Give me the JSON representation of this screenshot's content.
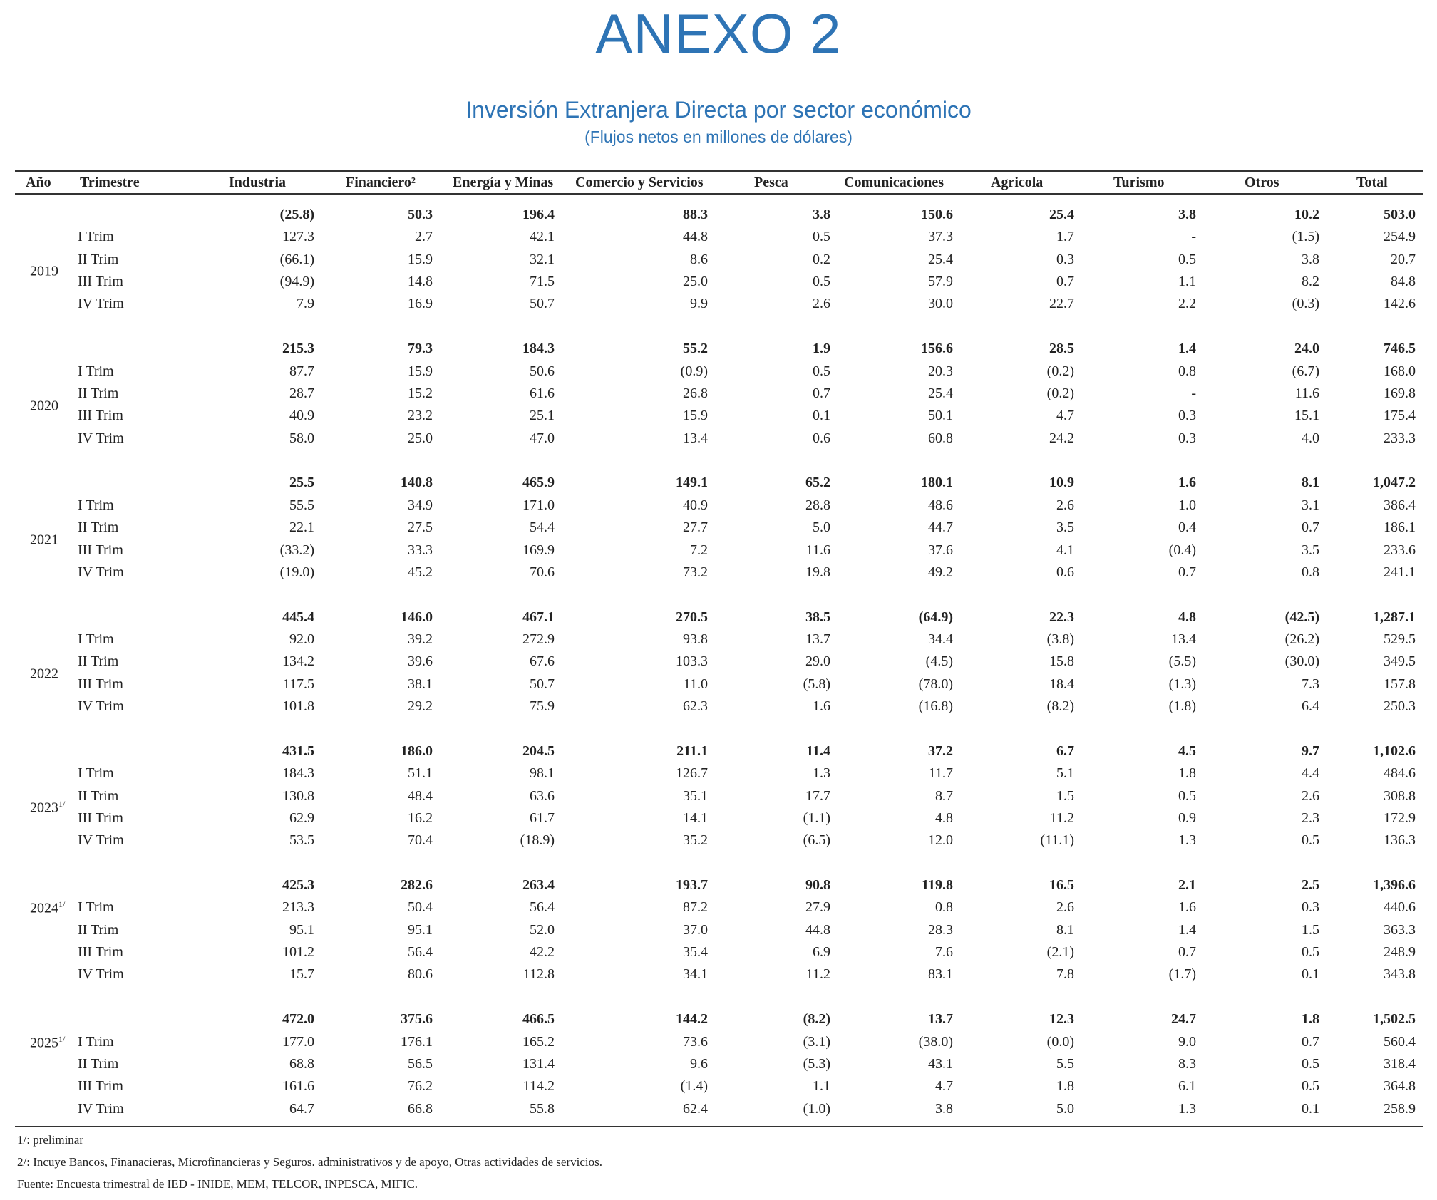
{
  "header": {
    "title": "ANEXO 2",
    "subtitle": "Inversión Extranjera Directa por sector económico",
    "units": "(Flujos netos en millones de dólares)",
    "title_color": "#2e74b5"
  },
  "table": {
    "columns": [
      "Año",
      "Trimestre",
      "Industria",
      "Financiero²",
      "Energía y Minas",
      "Comercio y Servicios",
      "Pesca",
      "Comunicaciones",
      "Agricola",
      "Turismo",
      "Otros",
      "Total"
    ],
    "blocks": [
      {
        "year": "2019",
        "note": "",
        "total": [
          "(25.8)",
          "50.3",
          "196.4",
          "88.3",
          "3.8",
          "150.6",
          "25.4",
          "3.8",
          "10.2",
          "503.0"
        ],
        "quarters": [
          {
            "label": "I Trim",
            "values": [
              "127.3",
              "2.7",
              "42.1",
              "44.8",
              "0.5",
              "37.3",
              "1.7",
              "-",
              "(1.5)",
              "254.9"
            ]
          },
          {
            "label": "II Trim",
            "values": [
              "(66.1)",
              "15.9",
              "32.1",
              "8.6",
              "0.2",
              "25.4",
              "0.3",
              "0.5",
              "3.8",
              "20.7"
            ]
          },
          {
            "label": "III Trim",
            "values": [
              "(94.9)",
              "14.8",
              "71.5",
              "25.0",
              "0.5",
              "57.9",
              "0.7",
              "1.1",
              "8.2",
              "84.8"
            ]
          },
          {
            "label": "IV Trim",
            "values": [
              "7.9",
              "16.9",
              "50.7",
              "9.9",
              "2.6",
              "30.0",
              "22.7",
              "2.2",
              "(0.3)",
              "142.6"
            ]
          }
        ]
      },
      {
        "year": "2020",
        "note": "",
        "total": [
          "215.3",
          "79.3",
          "184.3",
          "55.2",
          "1.9",
          "156.6",
          "28.5",
          "1.4",
          "24.0",
          "746.5"
        ],
        "quarters": [
          {
            "label": "I Trim",
            "values": [
              "87.7",
              "15.9",
              "50.6",
              "(0.9)",
              "0.5",
              "20.3",
              "(0.2)",
              "0.8",
              "(6.7)",
              "168.0"
            ]
          },
          {
            "label": "II Trim",
            "values": [
              "28.7",
              "15.2",
              "61.6",
              "26.8",
              "0.7",
              "25.4",
              "(0.2)",
              "-",
              "11.6",
              "169.8"
            ]
          },
          {
            "label": "III Trim",
            "values": [
              "40.9",
              "23.2",
              "25.1",
              "15.9",
              "0.1",
              "50.1",
              "4.7",
              "0.3",
              "15.1",
              "175.4"
            ]
          },
          {
            "label": "IV Trim",
            "values": [
              "58.0",
              "25.0",
              "47.0",
              "13.4",
              "0.6",
              "60.8",
              "24.2",
              "0.3",
              "4.0",
              "233.3"
            ]
          }
        ]
      },
      {
        "year": "2021",
        "note": "",
        "total": [
          "25.5",
          "140.8",
          "465.9",
          "149.1",
          "65.2",
          "180.1",
          "10.9",
          "1.6",
          "8.1",
          "1,047.2"
        ],
        "quarters": [
          {
            "label": "I Trim",
            "values": [
              "55.5",
              "34.9",
              "171.0",
              "40.9",
              "28.8",
              "48.6",
              "2.6",
              "1.0",
              "3.1",
              "386.4"
            ]
          },
          {
            "label": "II Trim",
            "values": [
              "22.1",
              "27.5",
              "54.4",
              "27.7",
              "5.0",
              "44.7",
              "3.5",
              "0.4",
              "0.7",
              "186.1"
            ]
          },
          {
            "label": "III Trim",
            "values": [
              "(33.2)",
              "33.3",
              "169.9",
              "7.2",
              "11.6",
              "37.6",
              "4.1",
              "(0.4)",
              "3.5",
              "233.6"
            ]
          },
          {
            "label": "IV Trim",
            "values": [
              "(19.0)",
              "45.2",
              "70.6",
              "73.2",
              "19.8",
              "49.2",
              "0.6",
              "0.7",
              "0.8",
              "241.1"
            ]
          }
        ]
      },
      {
        "year": "2022",
        "note": "",
        "total": [
          "445.4",
          "146.0",
          "467.1",
          "270.5",
          "38.5",
          "(64.9)",
          "22.3",
          "4.8",
          "(42.5)",
          "1,287.1"
        ],
        "quarters": [
          {
            "label": "I Trim",
            "values": [
              "92.0",
              "39.2",
              "272.9",
              "93.8",
              "13.7",
              "34.4",
              "(3.8)",
              "13.4",
              "(26.2)",
              "529.5"
            ]
          },
          {
            "label": "II Trim",
            "values": [
              "134.2",
              "39.6",
              "67.6",
              "103.3",
              "29.0",
              "(4.5)",
              "15.8",
              "(5.5)",
              "(30.0)",
              "349.5"
            ]
          },
          {
            "label": "III Trim",
            "values": [
              "117.5",
              "38.1",
              "50.7",
              "11.0",
              "(5.8)",
              "(78.0)",
              "18.4",
              "(1.3)",
              "7.3",
              "157.8"
            ]
          },
          {
            "label": "IV Trim",
            "values": [
              "101.8",
              "29.2",
              "75.9",
              "62.3",
              "1.6",
              "(16.8)",
              "(8.2)",
              "(1.8)",
              "6.4",
              "250.3"
            ]
          }
        ]
      },
      {
        "year": "2023",
        "note": "1/",
        "total": [
          "431.5",
          "186.0",
          "204.5",
          "211.1",
          "11.4",
          "37.2",
          "6.7",
          "4.5",
          "9.7",
          "1,102.6"
        ],
        "quarters": [
          {
            "label": "I Trim",
            "values": [
              "184.3",
              "51.1",
              "98.1",
              "126.7",
              "1.3",
              "11.7",
              "5.1",
              "1.8",
              "4.4",
              "484.6"
            ]
          },
          {
            "label": "II Trim",
            "values": [
              "130.8",
              "48.4",
              "63.6",
              "35.1",
              "17.7",
              "8.7",
              "1.5",
              "0.5",
              "2.6",
              "308.8"
            ]
          },
          {
            "label": "III Trim",
            "values": [
              "62.9",
              "16.2",
              "61.7",
              "14.1",
              "(1.1)",
              "4.8",
              "11.2",
              "0.9",
              "2.3",
              "172.9"
            ]
          },
          {
            "label": "IV Trim",
            "values": [
              "53.5",
              "70.4",
              "(18.9)",
              "35.2",
              "(6.5)",
              "12.0",
              "(11.1)",
              "1.3",
              "0.5",
              "136.3"
            ]
          }
        ]
      },
      {
        "year": "2024",
        "note": "1/",
        "total": [
          "425.3",
          "282.6",
          "263.4",
          "193.7",
          "90.8",
          "119.8",
          "16.5",
          "2.1",
          "2.5",
          "1,396.6"
        ],
        "quarters": [
          {
            "label": "I Trim",
            "values": [
              "213.3",
              "50.4",
              "56.4",
              "87.2",
              "27.9",
              "0.8",
              "2.6",
              "1.6",
              "0.3",
              "440.6"
            ]
          },
          {
            "label": "II Trim",
            "values": [
              "95.1",
              "95.1",
              "52.0",
              "37.0",
              "44.8",
              "28.3",
              "8.1",
              "1.4",
              "1.5",
              "363.3"
            ]
          },
          {
            "label": "III Trim",
            "values": [
              "101.2",
              "56.4",
              "42.2",
              "35.4",
              "6.9",
              "7.6",
              "(2.1)",
              "0.7",
              "0.5",
              "248.9"
            ]
          },
          {
            "label": "IV Trim",
            "values": [
              "15.7",
              "80.6",
              "112.8",
              "34.1",
              "11.2",
              "83.1",
              "7.8",
              "(1.7)",
              "0.1",
              "343.8"
            ]
          }
        ]
      },
      {
        "year": "2025",
        "note": "1/",
        "total": [
          "472.0",
          "375.6",
          "466.5",
          "144.2",
          "(8.2)",
          "13.7",
          "12.3",
          "24.7",
          "1.8",
          "1,502.5"
        ],
        "quarters": [
          {
            "label": "I Trim",
            "values": [
              "177.0",
              "176.1",
              "165.2",
              "73.6",
              "(3.1)",
              "(38.0)",
              "(0.0)",
              "9.0",
              "0.7",
              "560.4"
            ]
          },
          {
            "label": "II Trim",
            "values": [
              "68.8",
              "56.5",
              "131.4",
              "9.6",
              "(5.3)",
              "43.1",
              "5.5",
              "8.3",
              "0.5",
              "318.4"
            ]
          },
          {
            "label": "III Trim",
            "values": [
              "161.6",
              "76.2",
              "114.2",
              "(1.4)",
              "1.1",
              "4.7",
              "1.8",
              "6.1",
              "0.5",
              "364.8"
            ]
          },
          {
            "label": "IV Trim",
            "values": [
              "64.7",
              "66.8",
              "55.8",
              "62.4",
              "(1.0)",
              "3.8",
              "5.0",
              "1.3",
              "0.1",
              "258.9"
            ]
          }
        ]
      }
    ]
  },
  "footnotes": [
    "1/: preliminar",
    "2/: Incuye Bancos, Finanacieras, Microfinancieras y Seguros. administrativos y de apoyo, Otras actividades de servicios.",
    "Fuente: Encuesta trimestral de IED - INIDE, MEM, TELCOR, INPESCA, MIFIC."
  ]
}
